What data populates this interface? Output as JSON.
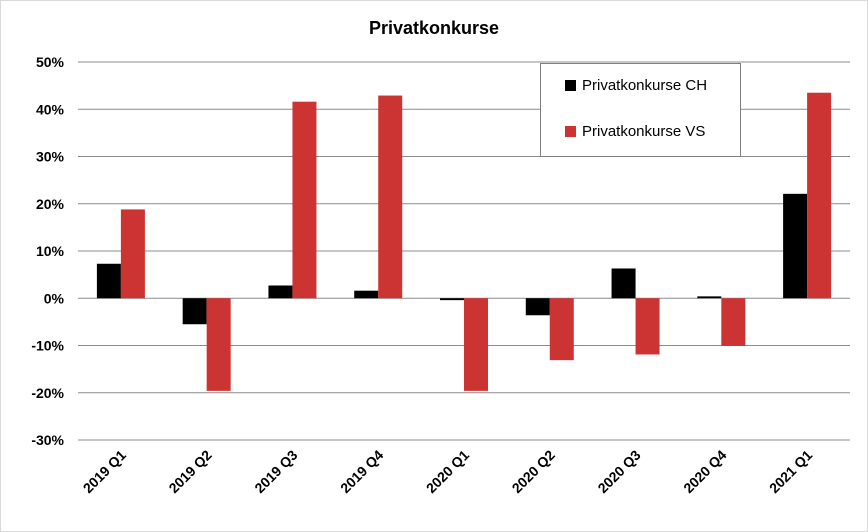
{
  "chart_data": {
    "type": "bar",
    "title": "Privatkonkurse",
    "xlabel": "",
    "ylabel": "",
    "categories": [
      "2019 Q1",
      "2019 Q2",
      "2019 Q3",
      "2019 Q4",
      "2020 Q1",
      "2020 Q2",
      "2020 Q3",
      "2020 Q4",
      "2021 Q1"
    ],
    "series": [
      {
        "name": "Privatkonkurse CH",
        "color": "#000000",
        "values": [
          7.3,
          -5.5,
          2.7,
          1.6,
          -0.4,
          -3.6,
          6.3,
          0.4,
          22.1
        ]
      },
      {
        "name": "Privatkonkurse VS",
        "color": "#cc3333",
        "values": [
          18.8,
          -19.6,
          41.6,
          42.9,
          -19.6,
          -13.1,
          -11.9,
          -10.1,
          43.5
        ]
      }
    ],
    "ylim": [
      -30,
      50
    ],
    "yticks": [
      50,
      40,
      30,
      20,
      10,
      0,
      -10,
      -20,
      -30
    ],
    "ytick_labels": [
      "50%",
      "40%",
      "30%",
      "20%",
      "10%",
      "0%",
      "-10%",
      "-20%",
      "-30%"
    ],
    "grid": true,
    "legend_position": "top-right"
  }
}
